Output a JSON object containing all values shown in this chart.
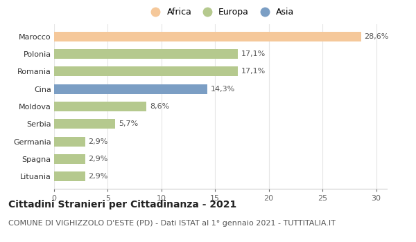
{
  "categories": [
    "Lituania",
    "Spagna",
    "Germania",
    "Serbia",
    "Moldova",
    "Cina",
    "Romania",
    "Polonia",
    "Marocco"
  ],
  "values": [
    2.9,
    2.9,
    2.9,
    5.7,
    8.6,
    14.3,
    17.1,
    17.1,
    28.6
  ],
  "labels": [
    "2,9%",
    "2,9%",
    "2,9%",
    "5,7%",
    "8,6%",
    "14,3%",
    "17,1%",
    "17,1%",
    "28,6%"
  ],
  "colors": [
    "#b5c98e",
    "#b5c98e",
    "#b5c98e",
    "#b5c98e",
    "#b5c98e",
    "#7b9ec4",
    "#b5c98e",
    "#b5c98e",
    "#f5c89a"
  ],
  "legend": [
    {
      "label": "Africa",
      "color": "#f5c89a"
    },
    {
      "label": "Europa",
      "color": "#b5c98e"
    },
    {
      "label": "Asia",
      "color": "#7b9ec4"
    }
  ],
  "title": "Cittadini Stranieri per Cittadinanza - 2021",
  "subtitle": "COMUNE DI VIGHIZZOLO D'ESTE (PD) - Dati ISTAT al 1° gennaio 2021 - TUTTITALIA.IT",
  "xlim": [
    0,
    31
  ],
  "xticks": [
    0,
    5,
    10,
    15,
    20,
    25,
    30
  ],
  "background_color": "#ffffff",
  "grid_color": "#e5e5e5",
  "bar_height": 0.55,
  "title_fontsize": 10,
  "subtitle_fontsize": 8,
  "label_fontsize": 8,
  "tick_fontsize": 8,
  "legend_fontsize": 9
}
